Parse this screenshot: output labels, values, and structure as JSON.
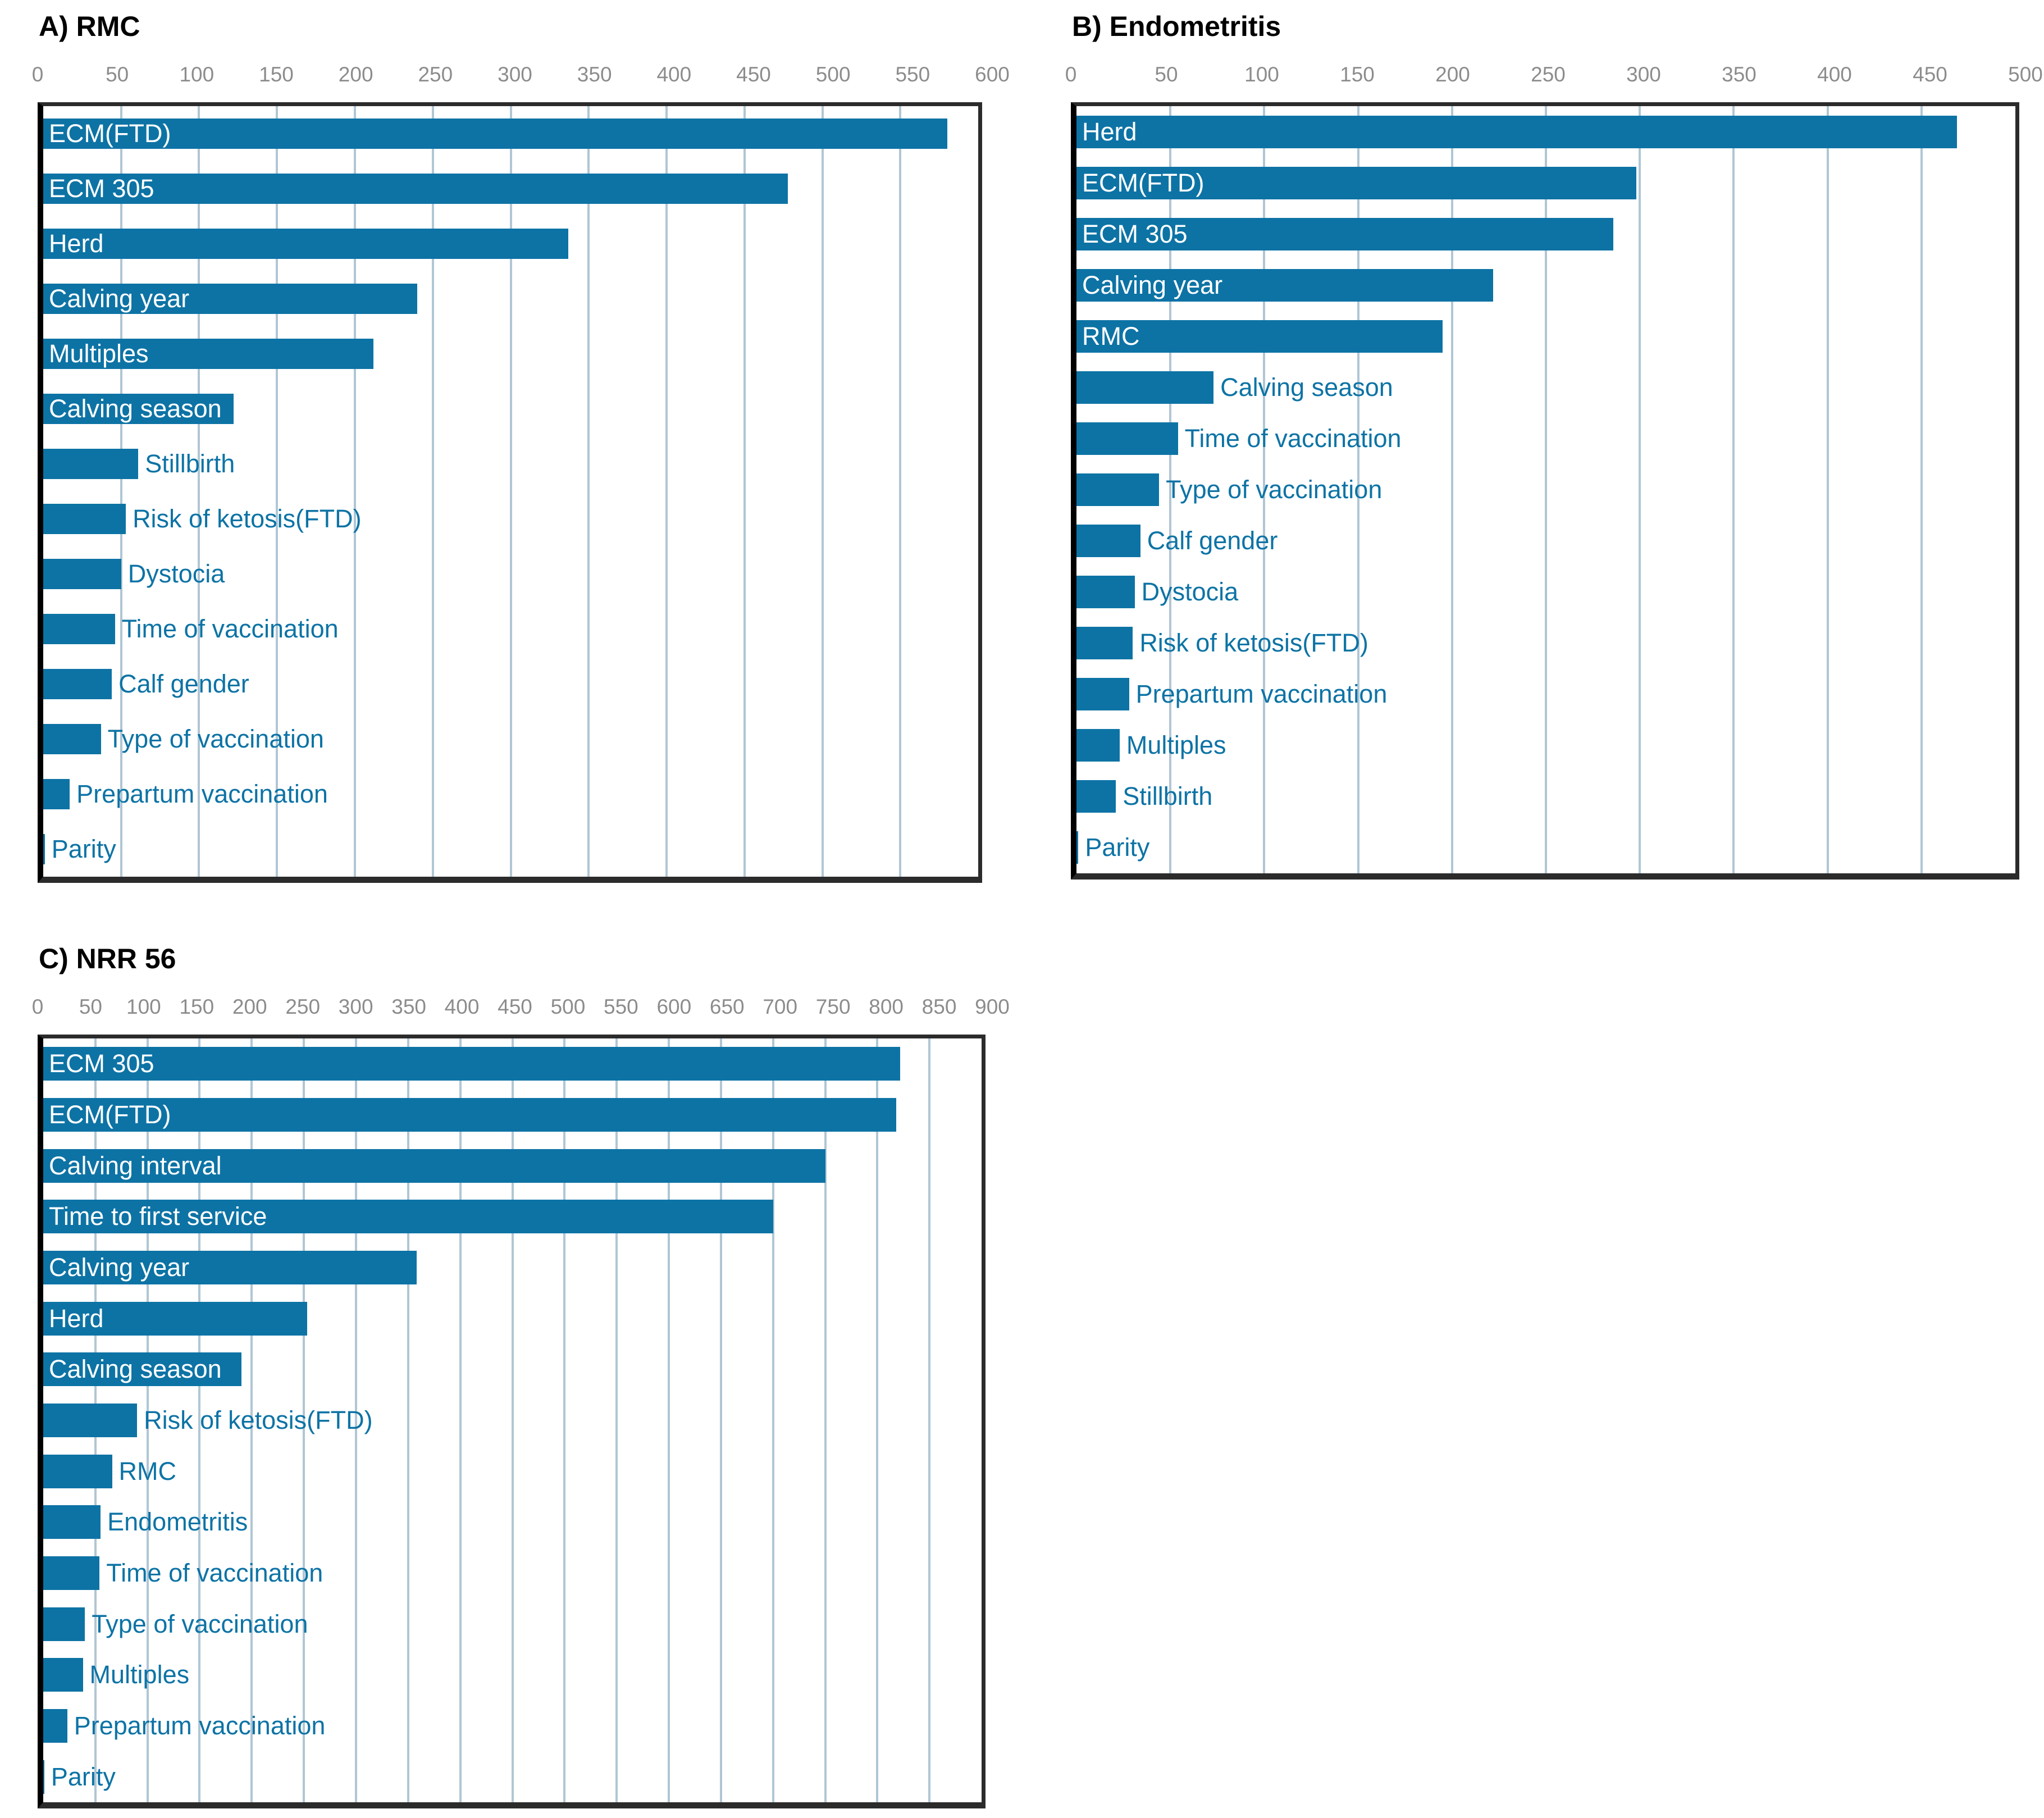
{
  "page": {
    "background": "#ffffff",
    "description": "Three horizontal bar charts of relative variable importance"
  },
  "colors": {
    "bar": "#0d73a5",
    "label_inside": "#ffffff",
    "label_outside": "#0d73a5",
    "gridline": "#b0c6d4",
    "tick_text": "#8c8c8c",
    "plot_border": "#2b2b2b",
    "plot_border_left": "#000000",
    "title_text": "#000000"
  },
  "chart_data": [
    {
      "type": "bar",
      "orientation": "horizontal",
      "title": "A) RMC",
      "xlabel": "",
      "ylabel": "",
      "xlim": [
        0,
        600
      ],
      "tick_step": 50,
      "ticks": [
        0,
        50,
        100,
        150,
        200,
        250,
        300,
        350,
        400,
        450,
        500,
        550,
        600
      ],
      "grid": true,
      "legend_position": "none",
      "categories": [
        "ECM(FTD)",
        "ECM 305",
        "Herd",
        "Calving year",
        "Multiples",
        "Calving season",
        "Stillbirth",
        "Risk of ketosis(FTD)",
        "Dystocia",
        "Time of vaccination",
        "Calf gender",
        "Type of vaccination",
        "Prepartum vaccination",
        "Parity"
      ],
      "values": [
        580,
        478,
        337,
        240,
        212,
        122,
        61,
        53,
        50,
        46,
        44,
        37,
        17,
        1
      ],
      "label_inside": [
        true,
        true,
        true,
        true,
        true,
        true,
        false,
        false,
        false,
        false,
        false,
        false,
        false,
        false
      ]
    },
    {
      "type": "bar",
      "orientation": "horizontal",
      "title": "B) Endometritis",
      "xlabel": "",
      "ylabel": "",
      "xlim": [
        0,
        500
      ],
      "tick_step": 50,
      "ticks": [
        0,
        50,
        100,
        150,
        200,
        250,
        300,
        350,
        400,
        450,
        500
      ],
      "grid": true,
      "legend_position": "none",
      "categories": [
        "Herd",
        "ECM(FTD)",
        "ECM 305",
        "Calving year",
        "RMC",
        "Calving season",
        "Time of vaccination",
        "Type of vaccination",
        "Calf gender",
        "Dystocia",
        "Risk of ketosis(FTD)",
        "Prepartum vaccination",
        "Multiples",
        "Stillbirth",
        "Parity"
      ],
      "values": [
        469,
        298,
        286,
        222,
        195,
        73,
        54,
        44,
        34,
        31,
        30,
        28,
        23,
        21,
        1
      ],
      "label_inside": [
        true,
        true,
        true,
        true,
        true,
        false,
        false,
        false,
        false,
        false,
        false,
        false,
        false,
        false,
        false
      ]
    },
    {
      "type": "bar",
      "orientation": "horizontal",
      "title": "C) NRR 56",
      "xlabel": "",
      "ylabel": "",
      "xlim": [
        0,
        900
      ],
      "tick_step": 50,
      "ticks": [
        0,
        50,
        100,
        150,
        200,
        250,
        300,
        350,
        400,
        450,
        500,
        550,
        600,
        650,
        700,
        750,
        800,
        850,
        900
      ],
      "grid": true,
      "legend_position": "none",
      "categories": [
        "ECM 305",
        "ECM(FTD)",
        "Calving interval",
        "Time to first service",
        "Calving year",
        "Herd",
        "Calving season",
        "Risk of ketosis(FTD)",
        "RMC",
        "Endometritis",
        "Time of vaccination",
        "Type of vaccination",
        "Multiples",
        "Prepartum vaccination",
        "Parity"
      ],
      "values": [
        822,
        818,
        750,
        700,
        358,
        253,
        190,
        90,
        66,
        55,
        54,
        40,
        38,
        23,
        1
      ],
      "label_inside": [
        true,
        true,
        true,
        true,
        true,
        true,
        true,
        false,
        false,
        false,
        false,
        false,
        false,
        false,
        false
      ]
    }
  ]
}
